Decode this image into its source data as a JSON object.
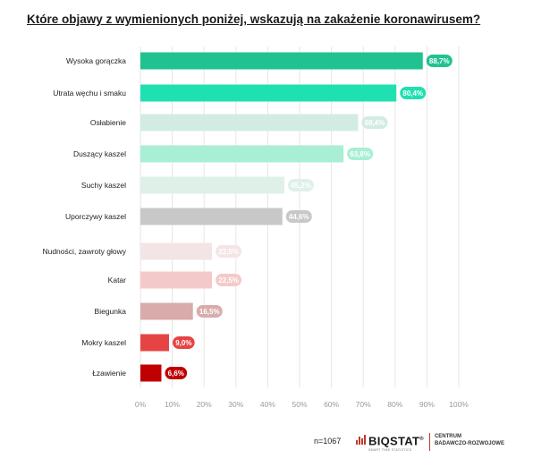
{
  "title": "Które objawy z wymienionych poniżej, wskazują na zakażenie koronawirusem?",
  "chart_data": {
    "type": "bar",
    "orientation": "horizontal",
    "title": "Które objawy z wymienionych poniżej, wskazują na zakażenie koronawirusem?",
    "categories": [
      "Wysoka gorączka",
      "Utrata węchu i smaku",
      "Osłabienie",
      "Duszący kaszel",
      "Suchy kaszel",
      "Uporczywy kaszel",
      "Nudności, zawroty głowy",
      "Katar",
      "Biegunka",
      "Mokry kaszel",
      "Łzawienie"
    ],
    "values": [
      88.7,
      80.4,
      68.4,
      63.8,
      45.2,
      44.6,
      22.5,
      22.5,
      16.5,
      9.0,
      6.6
    ],
    "value_labels": [
      "88,7%",
      "80,4%",
      "68,4%",
      "63,8%",
      "45,2%",
      "44,6%",
      "22,5%",
      "22,5%",
      "16,5%",
      "9,0%",
      "6,6%"
    ],
    "colors": [
      "#20c290",
      "#1fe0b0",
      "#d3ece3",
      "#a8efd5",
      "#dff0e9",
      "#c8c8c8",
      "#f3e5e5",
      "#f4c9c9",
      "#d9abab",
      "#e64444",
      "#c00000"
    ],
    "label_colors": [
      "#20c290",
      "#1fe0b0",
      "#d3ece3",
      "#a8efd5",
      "#dff0e9",
      "#c8c8c8",
      "#f3e5e5",
      "#f4c9c9",
      "#d9abab",
      "#e64444",
      "#c00000"
    ],
    "xlim": [
      0,
      100
    ],
    "x_ticks": [
      "0%",
      "10%",
      "20%",
      "30%",
      "40%",
      "50%",
      "60%",
      "70%",
      "80%",
      "90%",
      "100%"
    ],
    "grid": true
  },
  "footer": {
    "sample": "n=1067",
    "brand": "BIQSTAT",
    "brand_sub": "SMART TIME STATISTICS",
    "center_line1": "CENTRUM",
    "center_line2": "BADAWCZO-ROZWOJOWE",
    "brand_color": "#c0392b"
  }
}
